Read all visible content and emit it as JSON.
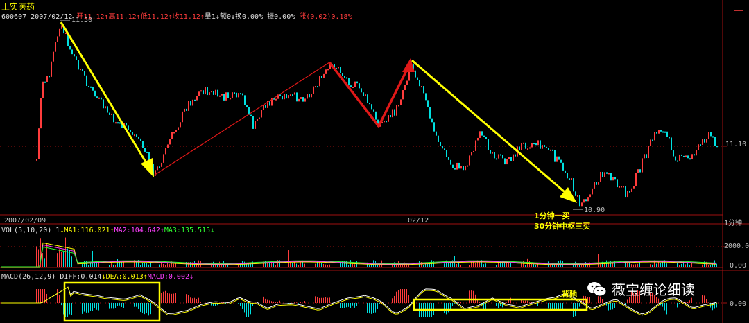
{
  "header": {
    "stock_name": "上实医药",
    "code": "600607",
    "date": "2007/02/12",
    "open": "开11.12↑",
    "high": "高11.12↑",
    "low": "低11.12↑",
    "close": "收11.12↑",
    "volume": "量1↓",
    "amount": "额0↓",
    "turnover": "换0.00%",
    "amplitude": "振0.00%",
    "change": "涨(0.02)0.18%"
  },
  "price_chart": {
    "high_label": "11.50",
    "low_label": "10.90",
    "right_axis_price": "11.10",
    "date_left": "2007/02/09",
    "date_mid": "02/12",
    "period": "1分钟"
  },
  "volume_panel": {
    "title": "VOL(5,10,20)",
    "value": "1",
    "ma1": "MA1:116.021",
    "ma2": "MA2:104.642",
    "ma3": "MA3:135.515",
    "axis_top": "2000.0",
    "axis_zero": "0.00"
  },
  "macd_panel": {
    "title": "MACD(26,12,9)",
    "diff": "DIFF:0.014",
    "dea": "DEA:0.013",
    "macd": "MACD:0.002",
    "axis_zero": "0.00"
  },
  "annotations": {
    "buy_1min": "1分钟一买",
    "buy_30min": "30分钟中枢三买",
    "divergence": "背驰"
  },
  "watermark": {
    "text": "薇宝缠论细读",
    "icon": "wechat-icon"
  },
  "colors": {
    "background": "#000000",
    "up": "#ff3c3c",
    "down": "#00e0e0",
    "annotation": "#ffff00",
    "grid": "#8b0000"
  }
}
